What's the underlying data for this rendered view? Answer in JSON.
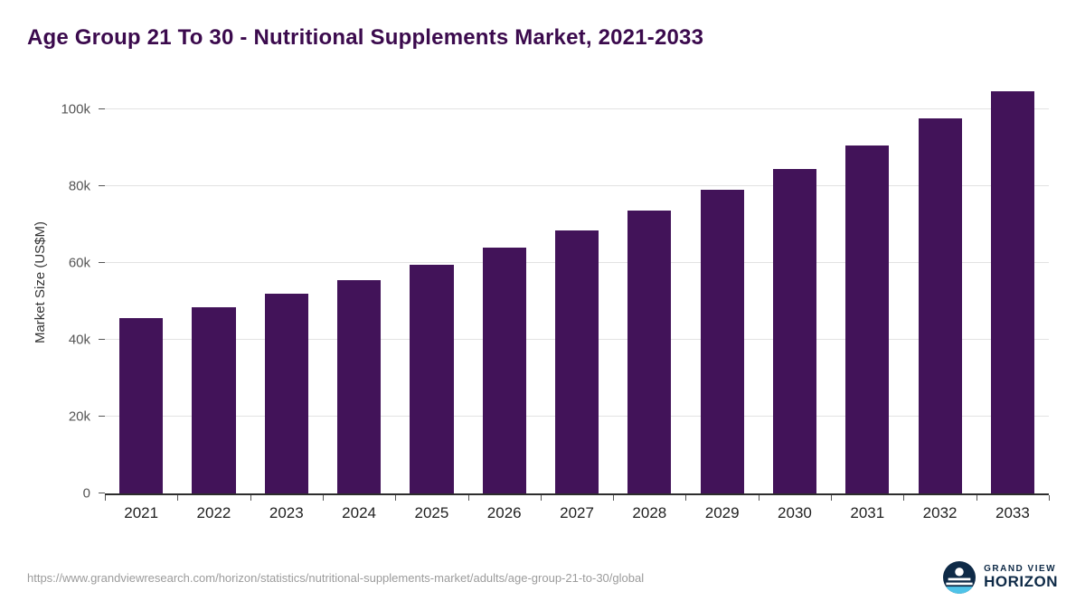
{
  "title": "Age Group 21 To 30 - Nutritional Supplements Market, 2021-2033",
  "colors": {
    "title": "#3B0A4D",
    "bar": "#421359",
    "axis": "#2d2d2d",
    "gridline": "#e2e2e2",
    "brand_navy": "#0E2A47",
    "brand_lightblue": "#4FC3E8"
  },
  "chart_data": {
    "type": "bar",
    "title": "Age Group 21 To 30 - Nutritional Supplements Market, 2021-2033",
    "categories": [
      "2021",
      "2022",
      "2023",
      "2024",
      "2025",
      "2026",
      "2027",
      "2028",
      "2029",
      "2030",
      "2031",
      "2032",
      "2033"
    ],
    "values": [
      45500,
      48500,
      52000,
      55500,
      59500,
      64000,
      68500,
      73500,
      79000,
      84500,
      90500,
      97500,
      104500
    ],
    "xlabel": "",
    "ylabel": "Market Size (US$M)",
    "ylim": [
      0,
      110000
    ],
    "yticks": [
      0,
      20000,
      40000,
      60000,
      80000,
      100000
    ],
    "ytick_labels": [
      "0",
      "20k",
      "40k",
      "60k",
      "80k",
      "100k"
    ],
    "grid": true,
    "legend": false,
    "bar_color": "#421359"
  },
  "footer": {
    "source_url": "https://www.grandviewresearch.com/horizon/statistics/nutritional-supplements-market/adults/age-group-21-to-30/global",
    "brand_top": "GRAND VIEW",
    "brand_bottom": "HORIZON"
  }
}
